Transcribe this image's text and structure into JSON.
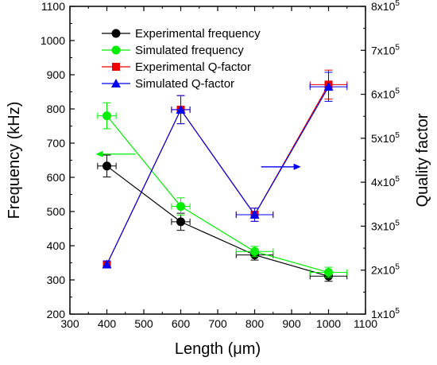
{
  "chart_data": {
    "type": "line",
    "xlabel": "Length (μm)",
    "ylabel": "Frequency (kHz)",
    "y2label": "Quality factor",
    "xlim": [
      300,
      1100
    ],
    "ylim": [
      200,
      1100
    ],
    "y2lim": [
      100000,
      800000
    ],
    "x_ticks": [
      300,
      400,
      500,
      600,
      700,
      800,
      900,
      1000,
      1100
    ],
    "y_ticks": [
      200,
      300,
      400,
      500,
      600,
      700,
      800,
      900,
      1000,
      1100
    ],
    "y2_ticks": [
      {
        "value": 100000,
        "mantissa": "1",
        "exponent": "5"
      },
      {
        "value": 200000,
        "mantissa": "2",
        "exponent": "5"
      },
      {
        "value": 300000,
        "mantissa": "3",
        "exponent": "5"
      },
      {
        "value": 400000,
        "mantissa": "4",
        "exponent": "5"
      },
      {
        "value": 500000,
        "mantissa": "5",
        "exponent": "5"
      },
      {
        "value": 600000,
        "mantissa": "6",
        "exponent": "5"
      },
      {
        "value": 700000,
        "mantissa": "7",
        "exponent": "5"
      },
      {
        "value": 800000,
        "mantissa": "8",
        "exponent": "5"
      }
    ],
    "x": [
      400,
      600,
      800,
      1000
    ],
    "series": [
      {
        "name": "Experimental frequency",
        "axis": "left",
        "marker": "circle",
        "color": "#000000",
        "values": [
          633,
          470,
          373,
          311
        ],
        "yerr": [
          32,
          25,
          15,
          15
        ],
        "xerr": [
          25,
          25,
          50,
          50
        ]
      },
      {
        "name": "Simulated frequency",
        "axis": "left",
        "marker": "circle",
        "color": "#00ee00",
        "values": [
          780,
          515,
          383,
          322
        ],
        "yerr": [
          38,
          25,
          15,
          15
        ],
        "xerr": [
          25,
          25,
          50,
          50
        ]
      },
      {
        "name": "Experimental Q-factor",
        "axis": "right",
        "marker": "square",
        "color": "#ee0000",
        "values": [
          213000,
          565000,
          326000,
          622000
        ],
        "yerr": [
          8000,
          32000,
          15000,
          33000
        ],
        "xerr": [
          0,
          25,
          50,
          50
        ]
      },
      {
        "name": "Simulated Q-factor",
        "axis": "right",
        "marker": "triangle",
        "color": "#0000ee",
        "values": [
          213000,
          565000,
          326000,
          617000
        ],
        "yerr": [
          8000,
          32000,
          15000,
          33000
        ],
        "xerr": [
          0,
          25,
          50,
          50
        ]
      }
    ],
    "annotations": [
      {
        "type": "arrow",
        "direction": "left",
        "at_x": 370,
        "at_y": 668,
        "axis": "left",
        "color": "#00ee00"
      },
      {
        "type": "arrow",
        "direction": "right",
        "at_x": 925,
        "at_y": 435000,
        "axis": "right",
        "color": "#0000ee"
      }
    ],
    "legend": "top-left",
    "grid": false
  }
}
